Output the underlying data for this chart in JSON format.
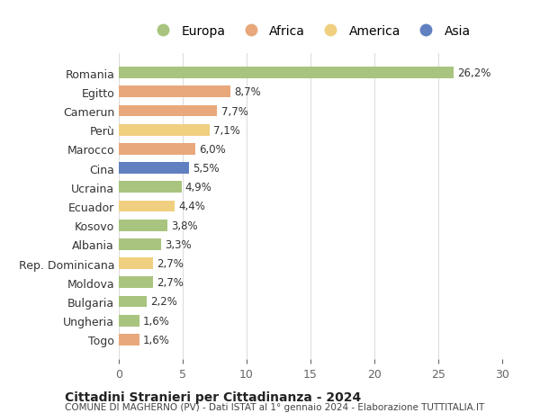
{
  "countries": [
    "Romania",
    "Egitto",
    "Camerun",
    "Perù",
    "Marocco",
    "Cina",
    "Ucraina",
    "Ecuador",
    "Kosovo",
    "Albania",
    "Rep. Dominicana",
    "Moldova",
    "Bulgaria",
    "Ungheria",
    "Togo"
  ],
  "values": [
    26.2,
    8.7,
    7.7,
    7.1,
    6.0,
    5.5,
    4.9,
    4.4,
    3.8,
    3.3,
    2.7,
    2.7,
    2.2,
    1.6,
    1.6
  ],
  "labels": [
    "26,2%",
    "8,7%",
    "7,7%",
    "7,1%",
    "6,0%",
    "5,5%",
    "4,9%",
    "4,4%",
    "3,8%",
    "3,3%",
    "2,7%",
    "2,7%",
    "2,2%",
    "1,6%",
    "1,6%"
  ],
  "continents": [
    "Europa",
    "Africa",
    "Africa",
    "America",
    "Africa",
    "Asia",
    "Europa",
    "America",
    "Europa",
    "Europa",
    "America",
    "Europa",
    "Europa",
    "Europa",
    "Africa"
  ],
  "continent_colors": {
    "Europa": "#a8c47e",
    "Africa": "#e8a87c",
    "America": "#f0d080",
    "Asia": "#6080c0"
  },
  "legend_order": [
    "Europa",
    "Africa",
    "America",
    "Asia"
  ],
  "title1": "Cittadini Stranieri per Cittadinanza - 2024",
  "title2": "COMUNE DI MAGHERNO (PV) - Dati ISTAT al 1° gennaio 2024 - Elaborazione TUTTITALIA.IT",
  "xlim": [
    0,
    30
  ],
  "xticks": [
    0,
    5,
    10,
    15,
    20,
    25,
    30
  ],
  "background_color": "#ffffff",
  "grid_color": "#dddddd"
}
